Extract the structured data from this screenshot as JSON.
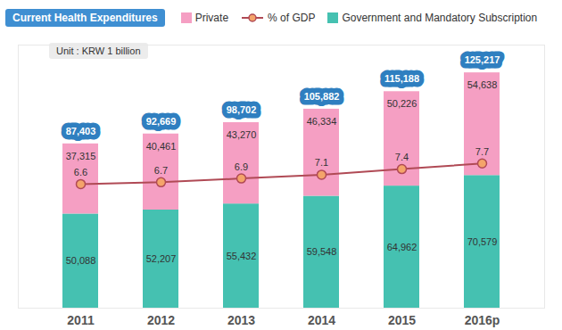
{
  "chart_data": {
    "type": "bar",
    "title": "Current Health Expenditures",
    "subtitle": "Unit : KRW 1 billion",
    "categories": [
      "2011",
      "2012",
      "2013",
      "2014",
      "2015",
      "2016p"
    ],
    "stacked": true,
    "data_labels": true,
    "tick_labels": "x",
    "legend": "top",
    "series": [
      {
        "name": "Private",
        "type": "bar",
        "color": "#f59fc3",
        "values": [
          37315,
          40461,
          43270,
          46334,
          50226,
          54638
        ],
        "value_labels": [
          "37,315",
          "40,461",
          "43,270",
          "46,334",
          "50,226",
          "54,638"
        ]
      },
      {
        "name": "% of GDP",
        "type": "line",
        "axis": "y2",
        "color": "#b04a55",
        "marker": "circle",
        "values": [
          6.6,
          6.7,
          6.9,
          7.1,
          7.4,
          7.7
        ]
      },
      {
        "name": "Government and Mandatory Subscription",
        "type": "bar",
        "color": "#45c1b1",
        "values": [
          50088,
          52207,
          55432,
          59548,
          64962,
          70579
        ],
        "value_labels": [
          "50,088",
          "52,207",
          "55,432",
          "59,548",
          "64,962",
          "70,579"
        ]
      }
    ],
    "totals": [
      87403,
      92669,
      98702,
      105882,
      115188,
      125217
    ],
    "total_labels": [
      "87,403",
      "92,669",
      "98,702",
      "105,882",
      "115,188",
      "125,217"
    ],
    "ylim": [
      0,
      140000
    ],
    "y2lim": [
      0,
      14
    ]
  }
}
